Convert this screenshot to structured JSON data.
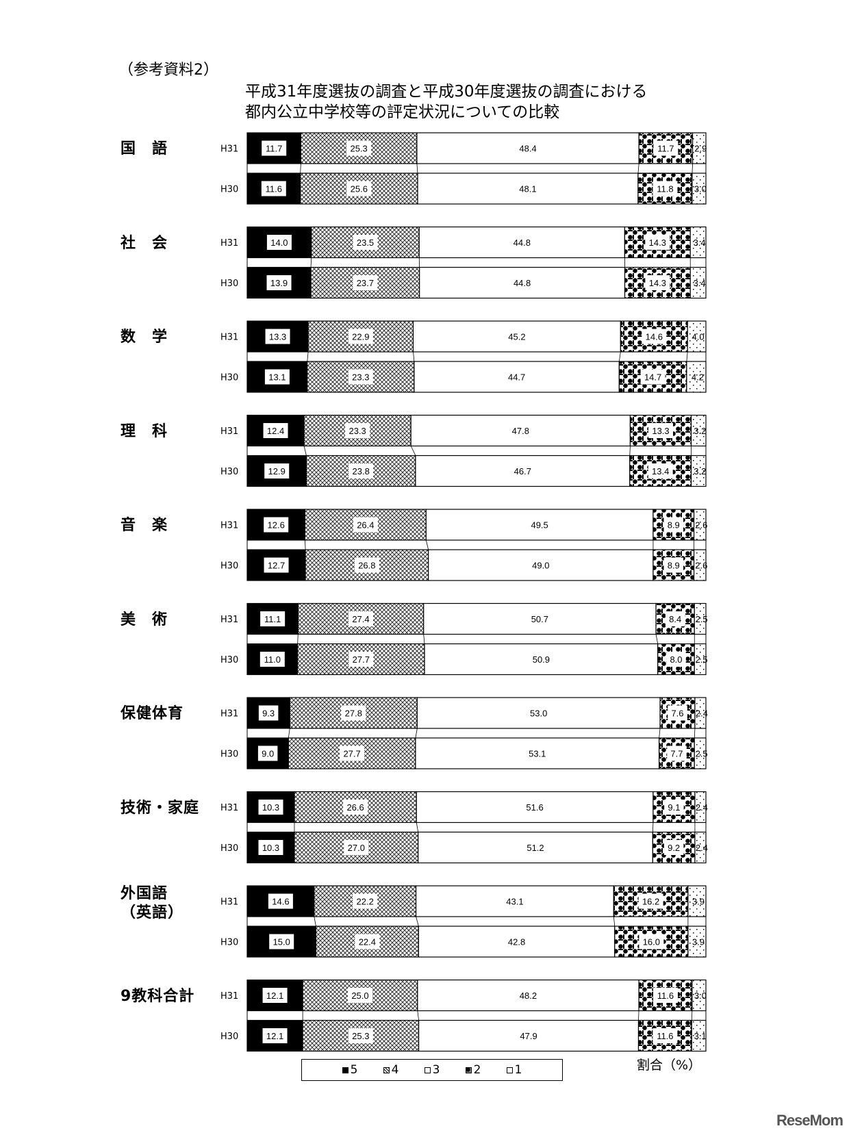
{
  "header": {
    "reference": "（参考資料2）",
    "title_line1": "平成31年度選抜の調査と平成30年度選抜の調査における",
    "title_line2": "都内公立中学校等の評定状況についての比較"
  },
  "chart_data": {
    "type": "bar",
    "orientation": "horizontal-stacked-100%",
    "unit_label": "割合（%）",
    "legend": [
      "5",
      "4",
      "3",
      "2",
      "1"
    ],
    "legend_placement": "bottom",
    "grid": false,
    "groups": [
      {
        "subject": "国　語",
        "rows": [
          {
            "year": "H31",
            "values": [
              11.7,
              25.3,
              48.4,
              11.7,
              2.9
            ]
          },
          {
            "year": "H30",
            "values": [
              11.6,
              25.6,
              48.1,
              11.8,
              3.0
            ]
          }
        ]
      },
      {
        "subject": "社　会",
        "rows": [
          {
            "year": "H31",
            "values": [
              14.0,
              23.5,
              44.8,
              14.3,
              3.4
            ]
          },
          {
            "year": "H30",
            "values": [
              13.9,
              23.7,
              44.8,
              14.3,
              3.4
            ]
          }
        ]
      },
      {
        "subject": "数　学",
        "rows": [
          {
            "year": "H31",
            "values": [
              13.3,
              22.9,
              45.2,
              14.6,
              4.0
            ]
          },
          {
            "year": "H30",
            "values": [
              13.1,
              23.3,
              44.7,
              14.7,
              4.2
            ]
          }
        ]
      },
      {
        "subject": "理　科",
        "rows": [
          {
            "year": "H31",
            "values": [
              12.4,
              23.3,
              47.8,
              13.3,
              3.2
            ]
          },
          {
            "year": "H30",
            "values": [
              12.9,
              23.8,
              46.7,
              13.4,
              3.2
            ]
          }
        ]
      },
      {
        "subject": "音　楽",
        "rows": [
          {
            "year": "H31",
            "values": [
              12.6,
              26.4,
              49.5,
              8.9,
              2.6
            ]
          },
          {
            "year": "H30",
            "values": [
              12.7,
              26.8,
              49.0,
              8.9,
              2.6
            ]
          }
        ]
      },
      {
        "subject": "美　術",
        "rows": [
          {
            "year": "H31",
            "values": [
              11.1,
              27.4,
              50.7,
              8.4,
              2.5
            ]
          },
          {
            "year": "H30",
            "values": [
              11.0,
              27.7,
              50.9,
              8.0,
              2.5
            ]
          }
        ]
      },
      {
        "subject": "保健体育",
        "rows": [
          {
            "year": "H31",
            "values": [
              9.3,
              27.8,
              53.0,
              7.6,
              2.4
            ]
          },
          {
            "year": "H30",
            "values": [
              9.0,
              27.7,
              53.1,
              7.7,
              2.5
            ]
          }
        ]
      },
      {
        "subject": "技術・家庭",
        "rows": [
          {
            "year": "H31",
            "values": [
              10.3,
              26.6,
              51.6,
              9.1,
              2.4
            ]
          },
          {
            "year": "H30",
            "values": [
              10.3,
              27.0,
              51.2,
              9.2,
              2.4
            ]
          }
        ]
      },
      {
        "subject": "外国語\n（英語）",
        "rows": [
          {
            "year": "H31",
            "values": [
              14.6,
              22.2,
              43.1,
              16.2,
              3.9
            ]
          },
          {
            "year": "H30",
            "values": [
              15.0,
              22.4,
              42.8,
              16.0,
              3.9
            ]
          }
        ]
      },
      {
        "subject": "9教科合計",
        "rows": [
          {
            "year": "H31",
            "values": [
              12.1,
              25.0,
              48.2,
              11.6,
              3.0
            ]
          },
          {
            "year": "H30",
            "values": [
              12.1,
              25.3,
              47.9,
              11.6,
              3.1
            ]
          }
        ]
      }
    ]
  },
  "watermark": "ReseMom"
}
